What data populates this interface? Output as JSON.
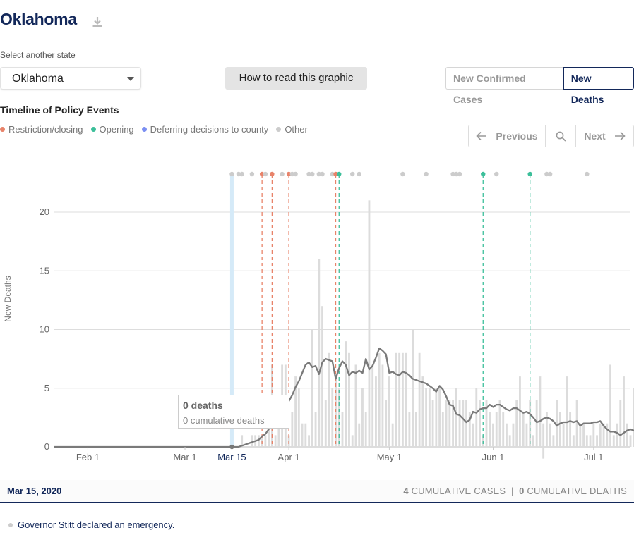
{
  "state_title": "Oklahoma",
  "select": {
    "label": "Select another state",
    "value": "Oklahoma"
  },
  "how_to_button": "How to read this graphic",
  "metric_toggle": {
    "options": [
      "New Confirmed Cases",
      "New Deaths"
    ],
    "selected": "New Deaths"
  },
  "timeline": {
    "heading": "Timeline of Policy Events",
    "legend": [
      {
        "label": "Restriction/closing",
        "color": "#e8836a"
      },
      {
        "label": "Opening",
        "color": "#3cbf9a"
      },
      {
        "label": "Deferring decisions to county",
        "color": "#7b8ff2"
      },
      {
        "label": "Other",
        "color": "#cccccc"
      }
    ],
    "nav": {
      "previous": "Previous",
      "next": "Next"
    }
  },
  "tooltip": {
    "deaths": "0 deaths",
    "cumulative": "0 cumulative deaths"
  },
  "footer": {
    "date": "Mar 15, 2020",
    "cases_count": "4",
    "cases_label": "CUMULATIVE CASES",
    "separator": "|",
    "deaths_count": "0",
    "deaths_label": "CUMULATIVE DEATHS"
  },
  "event_text": "Governor Stitt declared an emergency.",
  "chart_data": {
    "type": "bar",
    "ylabel": "New Deaths",
    "ylim": [
      0,
      23
    ],
    "yticks": [
      0,
      5,
      10,
      15,
      20
    ],
    "x_start": "2020-01-22",
    "x_end": "2020-07-12",
    "x_tick_labels": [
      {
        "date": "2020-02-01",
        "label": "Feb 1"
      },
      {
        "date": "2020-03-01",
        "label": "Mar 1"
      },
      {
        "date": "2020-03-15",
        "label": "Mar 15"
      },
      {
        "date": "2020-04-01",
        "label": "Apr 1"
      },
      {
        "date": "2020-05-01",
        "label": "May 1"
      },
      {
        "date": "2020-06-01",
        "label": "Jun 1"
      },
      {
        "date": "2020-07-01",
        "label": "Jul 1"
      }
    ],
    "highlight_date": "2020-03-15",
    "bars_start_date": "2020-03-18",
    "daily_new_deaths": [
      1,
      0,
      0,
      1,
      1,
      1,
      1,
      1,
      3,
      7,
      1,
      3,
      7,
      7,
      1,
      3,
      6,
      5,
      2,
      2,
      1,
      10,
      3,
      16,
      12,
      4,
      8,
      5,
      6,
      5,
      3,
      9,
      8,
      1,
      7,
      2,
      5,
      3,
      21,
      7,
      6,
      8,
      7,
      4,
      6,
      2,
      8,
      8,
      8,
      8,
      3,
      10,
      3,
      8,
      6,
      5,
      5,
      4,
      5,
      5,
      3,
      4,
      4,
      4,
      5,
      4,
      4,
      4,
      3,
      2,
      5,
      4,
      1,
      4,
      3,
      2,
      3,
      4,
      3,
      2,
      1,
      2,
      4,
      6,
      3,
      2,
      4,
      1,
      4,
      6,
      2,
      3,
      2,
      1,
      4,
      3,
      2,
      6,
      3,
      1,
      4,
      2,
      2,
      1,
      1,
      2,
      1,
      2,
      2,
      2,
      7,
      1,
      2,
      4,
      6,
      2,
      1,
      5,
      3,
      3
    ],
    "negative_adjustments": [
      {
        "date": "2020-06-16",
        "value": -1
      }
    ],
    "seven_day_average": [
      0.1,
      0.2,
      0.3,
      0.4,
      0.5,
      0.6,
      0.9,
      1.1,
      1.5,
      2,
      2.8,
      3.4,
      3.7,
      4.3,
      3.9,
      4.4,
      5.1,
      5.6,
      6.3,
      7,
      7.2,
      6.8,
      6.9,
      6.2,
      7.2,
      7.5,
      7.4,
      7.3,
      5.8,
      6.7,
      7.3,
      7,
      6.1,
      6.4,
      6.3,
      6.5,
      6.3,
      7.5,
      6.6,
      6.9,
      7.6,
      8.4,
      8.2,
      7.9,
      6.3,
      6.4,
      6.2,
      6.1,
      6.4,
      6.3,
      6.1,
      5.8,
      5.7,
      5.6,
      5.5,
      5.4,
      5.2,
      5,
      4.7,
      5.2,
      4.9,
      4.3,
      3.6,
      3.5,
      2.8,
      2.7,
      2.4,
      2.1,
      2.3,
      3,
      2.9,
      3.2,
      3.3,
      3.3,
      3.6,
      3.4,
      3.6,
      3.6,
      3.4,
      3.2,
      3.1,
      3.3,
      3.3,
      3.1,
      2.9,
      3,
      2.8,
      2.5,
      2.1,
      2.2,
      2.4,
      2.5,
      2.4,
      2.2,
      1.8,
      2,
      2.1,
      2.1,
      2.2,
      2.1,
      2.2,
      1.8,
      2,
      2,
      2,
      2.1,
      2.1,
      2.2,
      1.8,
      1.5,
      1.3,
      1.3,
      1.2,
      1,
      1.2,
      1.4,
      1.5,
      1.4,
      1.2,
      1.2,
      1.3,
      1.5,
      1.7,
      1.4,
      2.3,
      2.3,
      2.3,
      2.3,
      2.4,
      2.5,
      2.8,
      2.9,
      2,
      1.9,
      2.1,
      2.4,
      2.7,
      2.6,
      2.2
    ],
    "events": [
      {
        "date": "2020-03-15",
        "type": "other"
      },
      {
        "date": "2020-03-17",
        "type": "other"
      },
      {
        "date": "2020-03-18",
        "type": "other"
      },
      {
        "date": "2020-03-21",
        "type": "other"
      },
      {
        "date": "2020-03-24",
        "type": "restriction",
        "line": true
      },
      {
        "date": "2020-03-25",
        "type": "other"
      },
      {
        "date": "2020-03-27",
        "type": "restriction",
        "line": true
      },
      {
        "date": "2020-03-30",
        "type": "other"
      },
      {
        "date": "2020-04-01",
        "type": "restriction",
        "line": true
      },
      {
        "date": "2020-04-02",
        "type": "other"
      },
      {
        "date": "2020-04-03",
        "type": "other"
      },
      {
        "date": "2020-04-07",
        "type": "other"
      },
      {
        "date": "2020-04-08",
        "type": "other"
      },
      {
        "date": "2020-04-10",
        "type": "other"
      },
      {
        "date": "2020-04-11",
        "type": "other"
      },
      {
        "date": "2020-04-14",
        "type": "other"
      },
      {
        "date": "2020-04-15",
        "type": "restriction",
        "line": true
      },
      {
        "date": "2020-04-16",
        "type": "opening",
        "line": true
      },
      {
        "date": "2020-04-20",
        "type": "other"
      },
      {
        "date": "2020-04-22",
        "type": "other"
      },
      {
        "date": "2020-05-05",
        "type": "other"
      },
      {
        "date": "2020-05-12",
        "type": "other"
      },
      {
        "date": "2020-05-20",
        "type": "other"
      },
      {
        "date": "2020-05-21",
        "type": "other"
      },
      {
        "date": "2020-05-22",
        "type": "other"
      },
      {
        "date": "2020-05-29",
        "type": "opening",
        "line": true
      },
      {
        "date": "2020-06-02",
        "type": "other"
      },
      {
        "date": "2020-06-12",
        "type": "opening",
        "line": true
      },
      {
        "date": "2020-06-17",
        "type": "other"
      },
      {
        "date": "2020-06-18",
        "type": "other"
      },
      {
        "date": "2020-06-29",
        "type": "other"
      }
    ]
  }
}
